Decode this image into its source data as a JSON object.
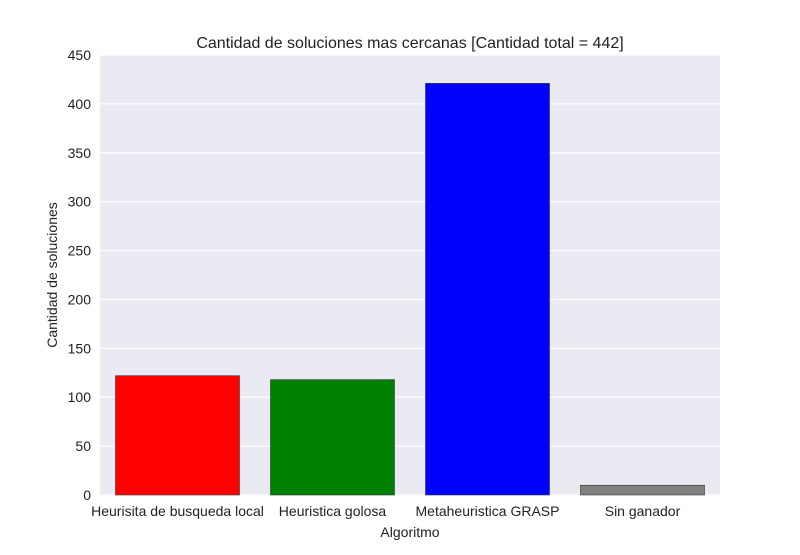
{
  "chart_data": {
    "type": "bar",
    "title": "Cantidad de soluciones mas cercanas [Cantidad total = 442]",
    "xlabel": "Algoritmo",
    "ylabel": "Cantidad de soluciones",
    "categories": [
      "Heurisita de busqueda local",
      "Heuristica golosa",
      "Metaheuristica GRASP",
      "Sin ganador"
    ],
    "values": [
      122,
      118,
      421,
      10
    ],
    "colors": [
      "#ff0000",
      "#008000",
      "#0000ff",
      "#808080"
    ],
    "ylim": [
      0,
      450
    ],
    "yticks": [
      0,
      50,
      100,
      150,
      200,
      250,
      300,
      350,
      400,
      450
    ],
    "grid": true,
    "background": "#eaeaf2"
  }
}
